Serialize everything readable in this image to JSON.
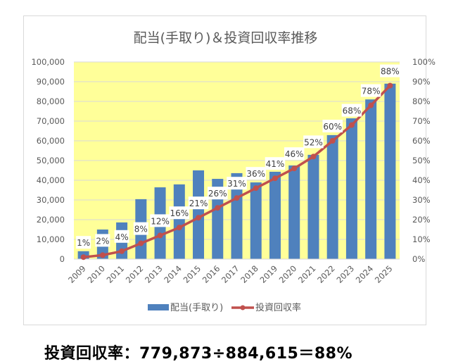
{
  "chart_data": {
    "type": "bar+line",
    "title": "配当(手取り)＆投資回収率推移",
    "categories": [
      "2009",
      "2010",
      "2011",
      "2012",
      "2013",
      "2014",
      "2015",
      "2016",
      "2017",
      "2018",
      "2019",
      "2020",
      "2021",
      "2022",
      "2023",
      "2024",
      "2025"
    ],
    "series": [
      {
        "name": "配当(手取り)",
        "type": "bar",
        "axis": "left",
        "color": "#4f81bd",
        "values": [
          4000,
          15000,
          18600,
          30400,
          36400,
          37900,
          45000,
          40700,
          43600,
          38900,
          44300,
          47500,
          52900,
          62900,
          71400,
          81000,
          89000
        ]
      },
      {
        "name": "投資回収率",
        "type": "line",
        "axis": "right",
        "color": "#c0504d",
        "values": [
          1,
          2,
          4,
          8,
          12,
          16,
          21,
          26,
          31,
          36,
          41,
          46,
          52,
          60,
          68,
          78,
          88
        ],
        "labels": [
          "1%",
          "2%",
          "4%",
          "8%",
          "12%",
          "16%",
          "21%",
          "26%",
          "31%",
          "36%",
          "41%",
          "46%",
          "52%",
          "60%",
          "68%",
          "78%",
          "88%"
        ]
      }
    ],
    "left_axis": {
      "ylim": [
        0,
        100000
      ],
      "ticks": [
        "0",
        "10,000",
        "20,000",
        "30,000",
        "40,000",
        "50,000",
        "60,000",
        "70,000",
        "80,000",
        "90,000",
        "100,000"
      ]
    },
    "right_axis": {
      "ylim": [
        0,
        100
      ],
      "ticks": [
        "0%",
        "10%",
        "20%",
        "30%",
        "40%",
        "50%",
        "60%",
        "70%",
        "80%",
        "90%",
        "100%"
      ]
    },
    "plot_background": "#ffff99",
    "grid": true,
    "legend": "bottom"
  },
  "footer": "投資回収率：779,873÷884,615＝88%"
}
